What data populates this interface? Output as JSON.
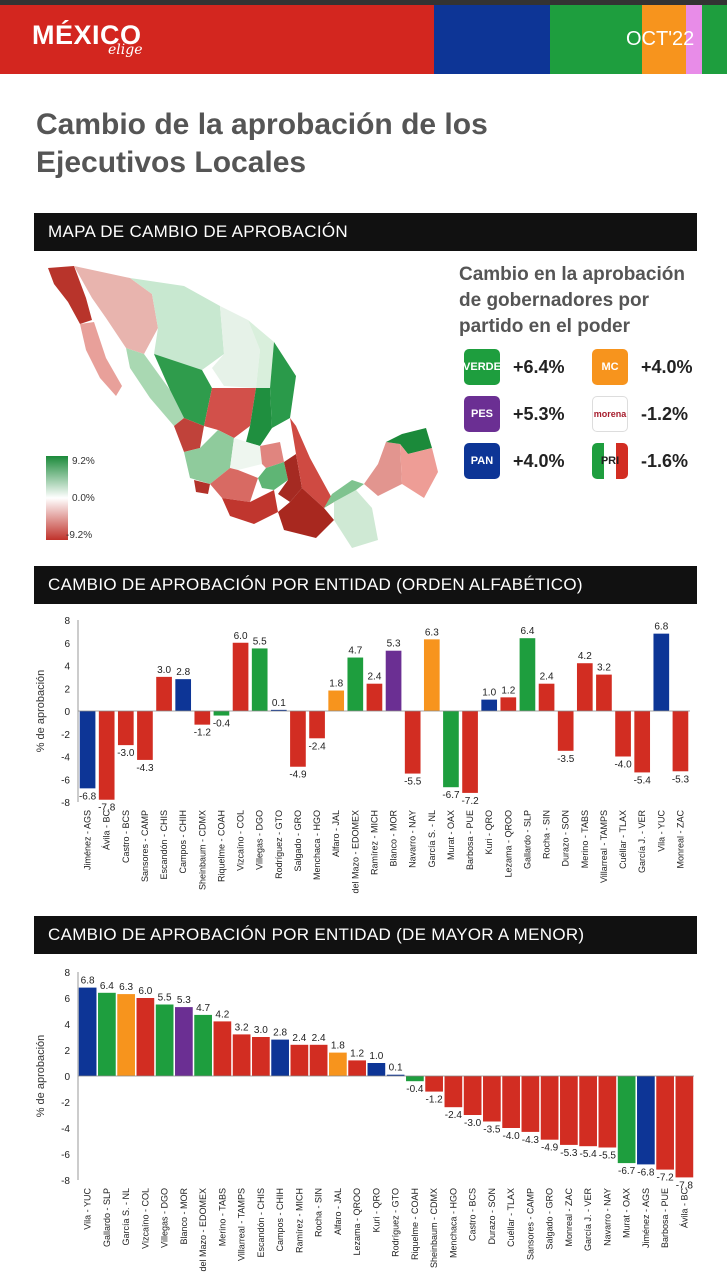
{
  "header": {
    "logo_main": "MÉXICO",
    "logo_sub": "elige",
    "date": "OCT'22"
  },
  "colors": {
    "red": "#d22d22",
    "blue": "#0d3596",
    "green": "#1e9e3e",
    "orange": "#f7941d",
    "purple": "#6b2f93",
    "pink": "#e88ce8",
    "gray_title": "#555555"
  },
  "title": "Cambio de la aprobación de los Ejecutivos Locales",
  "sections": {
    "map": "MAPA DE CAMBIO DE APROBACIÓN",
    "alpha": "CAMBIO DE APROBACIÓN POR ENTIDAD (ORDEN ALFABÉTICO)",
    "sorted": "CAMBIO DE APROBACIÓN POR ENTIDAD (DE MAYOR A MENOR)"
  },
  "map_legend": {
    "top": "9.2%",
    "mid": "0.0%",
    "bottom": "-9.2%"
  },
  "party_legend": {
    "title": "Cambio en la aprobación de gobernadores por partido en el poder",
    "items": [
      {
        "logo": "VERDE",
        "value": "+6.4%",
        "color": "#1e9e3e",
        "icon": "verde-logo-icon"
      },
      {
        "logo": "MC",
        "value": "+4.0%",
        "color": "#f7941d",
        "icon": "mc-logo-icon"
      },
      {
        "logo": "PES",
        "value": "+5.3%",
        "color": "#6b2f93",
        "icon": "pes-logo-icon"
      },
      {
        "logo": "morena",
        "value": "-1.2%",
        "color": "#a61c2c",
        "icon": "morena-logo-icon"
      },
      {
        "logo": "PAN",
        "value": "+4.0%",
        "color": "#0d3596",
        "icon": "pan-logo-icon"
      },
      {
        "logo": "PRI",
        "value": "-1.6%",
        "color": "#d22d22",
        "icon": "pri-logo-icon"
      }
    ]
  },
  "chart_data": [
    {
      "type": "bar",
      "title": "CAMBIO DE APROBACIÓN POR ENTIDAD (ORDEN ALFABÉTICO)",
      "ylabel": "% de aprobación",
      "ylim": [
        -8,
        8
      ],
      "yticks": [
        8,
        6,
        4,
        2,
        0,
        -2,
        -4,
        -6,
        -8
      ],
      "categories": [
        "Jiménez - AGS",
        "Ávila - BC",
        "Castro - BCS",
        "Sansores - CAMP",
        "Escandón - CHIS",
        "Campos - CHIH",
        "Sheinbaum - CDMX",
        "Riquelme - COAH",
        "Vizcaíno - COL",
        "Villegas - DGO",
        "Rodríguez - GTO",
        "Salgado - GRO",
        "Menchaca - HGO",
        "Alfaro - JAL",
        "del Mazo - EDOMEX",
        "Ramírez - MICH",
        "Blanco - MOR",
        "Navarro - NAY",
        "García S. - NL",
        "Murat - OAX",
        "Barbosa - PUE",
        "Kuri - QRO",
        "Lezama - QROO",
        "Gallardo - SLP",
        "Rocha - SIN",
        "Durazo - SON",
        "Merino - TABS",
        "Villarreal - TAMPS",
        "Cuéllar - TLAX",
        "García J. - VER",
        "Vila - YUC",
        "Monreal - ZAC"
      ],
      "values": [
        -6.8,
        -7.8,
        -3.0,
        -4.3,
        3.0,
        2.8,
        -1.2,
        -0.4,
        6.0,
        5.5,
        0.1,
        -4.9,
        -2.4,
        1.8,
        4.7,
        2.4,
        5.3,
        -5.5,
        6.3,
        -6.7,
        -7.2,
        1.0,
        1.2,
        6.4,
        2.4,
        -3.5,
        4.2,
        3.2,
        -4.0,
        -5.4,
        6.8,
        -5.3
      ],
      "value_labels": [
        "-6.8",
        "-7.8",
        "-3.0",
        "-4.3",
        "3.0",
        "2.8",
        "-1.2",
        "-0.4",
        "6.0",
        "5.5",
        "0.1",
        "-4.9",
        "-2.4",
        "1.8",
        "4.7",
        "2.4",
        "5.3",
        "-5.5",
        "6.3",
        "-6.7",
        "-7.2",
        "1.0",
        "1.2",
        "6.4",
        "2.4",
        "-3.5",
        "4.2",
        "3.2",
        "-4.0",
        "-5.4",
        "6.8",
        "-5.3"
      ],
      "colors": [
        "#0d3596",
        "#d22d22",
        "#d22d22",
        "#d22d22",
        "#d22d22",
        "#0d3596",
        "#d22d22",
        "#1e9e3e",
        "#d22d22",
        "#1e9e3e",
        "#0d3596",
        "#d22d22",
        "#d22d22",
        "#f7941d",
        "#1e9e3e",
        "#d22d22",
        "#6b2f93",
        "#d22d22",
        "#f7941d",
        "#1e9e3e",
        "#d22d22",
        "#0d3596",
        "#d22d22",
        "#1e9e3e",
        "#d22d22",
        "#d22d22",
        "#d22d22",
        "#d22d22",
        "#d22d22",
        "#d22d22",
        "#0d3596",
        "#d22d22"
      ]
    },
    {
      "type": "bar",
      "title": "CAMBIO DE APROBACIÓN POR ENTIDAD (DE MAYOR A MENOR)",
      "ylabel": "% de aprobación",
      "ylim": [
        -8,
        8
      ],
      "yticks": [
        8,
        6,
        4,
        2,
        0,
        -2,
        -4,
        -6,
        -8
      ],
      "categories": [
        "Vila - YUC",
        "Gallardo - SLP",
        "García S. - NL",
        "Vizcaíno - COL",
        "Villegas - DGO",
        "Blanco - MOR",
        "del Mazo - EDOMEX",
        "Merino - TABS",
        "Villarreal - TAMPS",
        "Escandón - CHIS",
        "Campos - CHIH",
        "Ramírez - MICH",
        "Rocha - SIN",
        "Alfaro - JAL",
        "Lezama - QROO",
        "Kuri - QRO",
        "Rodríguez - GTO",
        "Riquelme - COAH",
        "Sheinbaum - CDMX",
        "Menchaca - HGO",
        "Castro - BCS",
        "Durazo - SON",
        "Cuéllar - TLAX",
        "Sansores - CAMP",
        "Salgado - GRO",
        "Monreal - ZAC",
        "García J. - VER",
        "Navarro - NAY",
        "Murat - OAX",
        "Jiménez - AGS",
        "Barbosa - PUE",
        "Ávila - BC"
      ],
      "values": [
        6.8,
        6.4,
        6.3,
        6.0,
        5.5,
        5.3,
        4.7,
        4.2,
        3.2,
        3.0,
        2.8,
        2.4,
        2.4,
        1.8,
        1.2,
        1.0,
        0.1,
        -0.4,
        -1.2,
        -2.4,
        -3.0,
        -3.5,
        -4.0,
        -4.3,
        -4.9,
        -5.3,
        -5.4,
        -5.5,
        -6.7,
        -6.8,
        -7.2,
        -7.8
      ],
      "value_labels": [
        "6.8",
        "6.4",
        "6.3",
        "6.0",
        "5.5",
        "5.3",
        "4.7",
        "4.2",
        "3.2",
        "3.0",
        "2.8",
        "2.4",
        "2.4",
        "1.8",
        "1.2",
        "1.0",
        "0.1",
        "-0.4",
        "-1.2",
        "-2.4",
        "-3.0",
        "-3.5",
        "-4.0",
        "-4.3",
        "-4.9",
        "-5.3",
        "-5.4",
        "-5.5",
        "-6.7",
        "-6.8",
        "-7.2",
        "-7.8"
      ],
      "colors": [
        "#0d3596",
        "#1e9e3e",
        "#f7941d",
        "#d22d22",
        "#1e9e3e",
        "#6b2f93",
        "#1e9e3e",
        "#d22d22",
        "#d22d22",
        "#d22d22",
        "#0d3596",
        "#d22d22",
        "#d22d22",
        "#f7941d",
        "#d22d22",
        "#0d3596",
        "#0d3596",
        "#1e9e3e",
        "#d22d22",
        "#d22d22",
        "#d22d22",
        "#d22d22",
        "#d22d22",
        "#d22d22",
        "#d22d22",
        "#d22d22",
        "#d22d22",
        "#d22d22",
        "#1e9e3e",
        "#0d3596",
        "#d22d22",
        "#d22d22"
      ]
    }
  ]
}
